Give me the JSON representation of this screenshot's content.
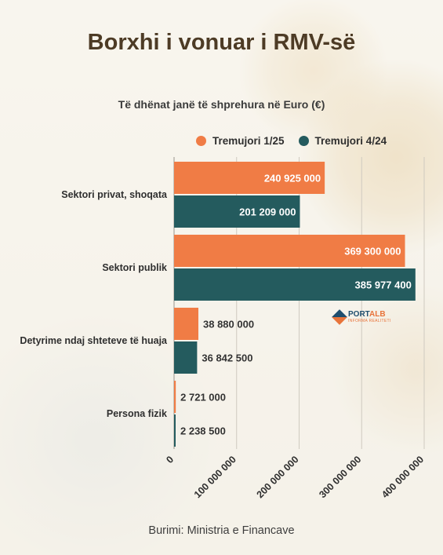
{
  "header": {
    "title": "Borxhi i vonuar i RMV-së",
    "subtitle": "Të dhënat janë të shprehura në  Euro (€)"
  },
  "logo": {
    "brand_main": "PORT",
    "brand_accent": "ALB",
    "tagline": "INFORMA REALITETI"
  },
  "source": "Burimi: Ministria e Financave",
  "colors": {
    "series1": "#f07c45",
    "series2": "#245b5e",
    "title": "#4d3b25"
  },
  "chart_data": {
    "type": "bar",
    "orientation": "horizontal",
    "categories": [
      "Sektori privat, shoqata",
      "Sektori publik",
      "Detyrime ndaj shteteve të huaja",
      "Persona fizik"
    ],
    "series": [
      {
        "name": "Tremujori 1/25",
        "values": [
          240925000,
          369300000,
          38880000,
          2721000
        ],
        "labels": [
          "240 925 000",
          "369 300 000",
          "38 880 000",
          "2 721 000"
        ]
      },
      {
        "name": "Tremujori 4/24",
        "values": [
          201209000,
          385977400,
          36842500,
          2238500
        ],
        "labels": [
          "201 209 000",
          "385 977 400",
          "36 842 500",
          "2 238 500"
        ]
      }
    ],
    "xlim": [
      0,
      400000000
    ],
    "ticks": [
      0,
      100000000,
      200000000,
      300000000,
      400000000
    ],
    "tick_labels": [
      "0",
      "100 000 000",
      "200 000 000",
      "300 000 000",
      "400 000 000"
    ],
    "grid": true,
    "legend_position": "top"
  }
}
